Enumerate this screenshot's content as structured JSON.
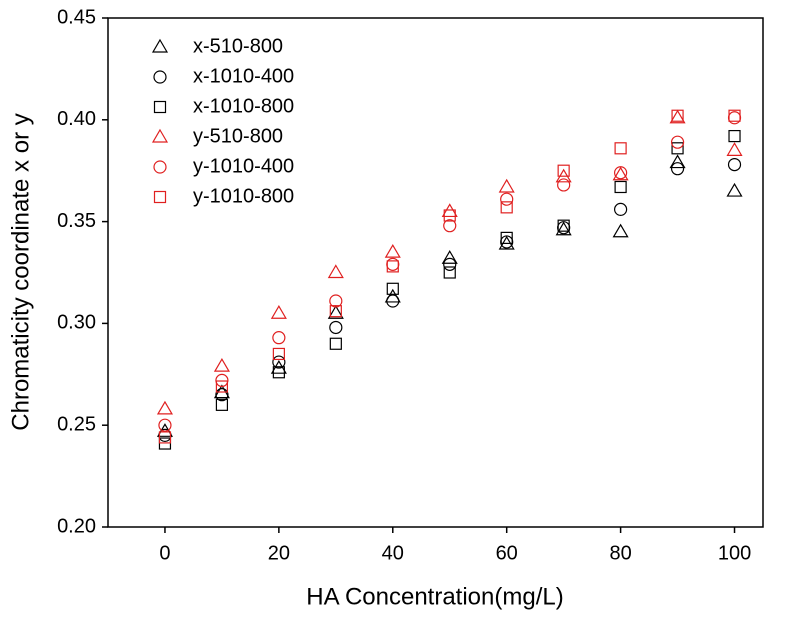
{
  "chart_data": {
    "type": "scatter",
    "x_label": "HA Concentration(mg/L)",
    "y_label": "Chromaticity coordinate x or y",
    "x": [
      0,
      10,
      20,
      30,
      40,
      50,
      60,
      70,
      80,
      90,
      100
    ],
    "series": [
      {
        "name": "x-510-800",
        "color": "#000000",
        "marker": "triangle",
        "values": [
          0.247,
          0.266,
          0.278,
          0.305,
          0.313,
          0.332,
          0.339,
          0.346,
          0.345,
          0.379,
          0.365
        ]
      },
      {
        "name": "x-1010-400",
        "color": "#000000",
        "marker": "circle",
        "values": [
          0.245,
          0.265,
          0.281,
          0.298,
          0.311,
          0.329,
          0.34,
          0.347,
          0.356,
          0.376,
          0.378
        ]
      },
      {
        "name": "x-1010-800",
        "color": "#000000",
        "marker": "square",
        "values": [
          0.241,
          0.26,
          0.276,
          0.29,
          0.317,
          0.325,
          0.342,
          0.348,
          0.367,
          0.386,
          0.392
        ]
      },
      {
        "name": "y-510-800",
        "color": "#e02020",
        "marker": "triangle",
        "values": [
          0.258,
          0.279,
          0.305,
          0.325,
          0.335,
          0.355,
          0.367,
          0.372,
          0.373,
          0.401,
          0.385
        ]
      },
      {
        "name": "y-1010-400",
        "color": "#e02020",
        "marker": "circle",
        "values": [
          0.25,
          0.272,
          0.293,
          0.311,
          0.329,
          0.348,
          0.361,
          0.368,
          0.374,
          0.389,
          0.401
        ]
      },
      {
        "name": "y-1010-800",
        "color": "#e02020",
        "marker": "square",
        "values": [
          0.244,
          0.269,
          0.285,
          0.306,
          0.328,
          0.353,
          0.357,
          0.375,
          0.386,
          0.402,
          0.402
        ]
      }
    ],
    "xlim": [
      -10,
      105
    ],
    "xticks": [
      0,
      20,
      40,
      60,
      80,
      100
    ],
    "ylim": [
      0.2,
      0.45
    ],
    "yticks": [
      {
        "value": 0.2,
        "label": "0.20"
      },
      0.25,
      {
        "value": 0.3,
        "label": "0.30"
      },
      0.35,
      {
        "value": 0.4,
        "label": "0.40"
      },
      0.45
    ],
    "legend": "upper-left"
  }
}
